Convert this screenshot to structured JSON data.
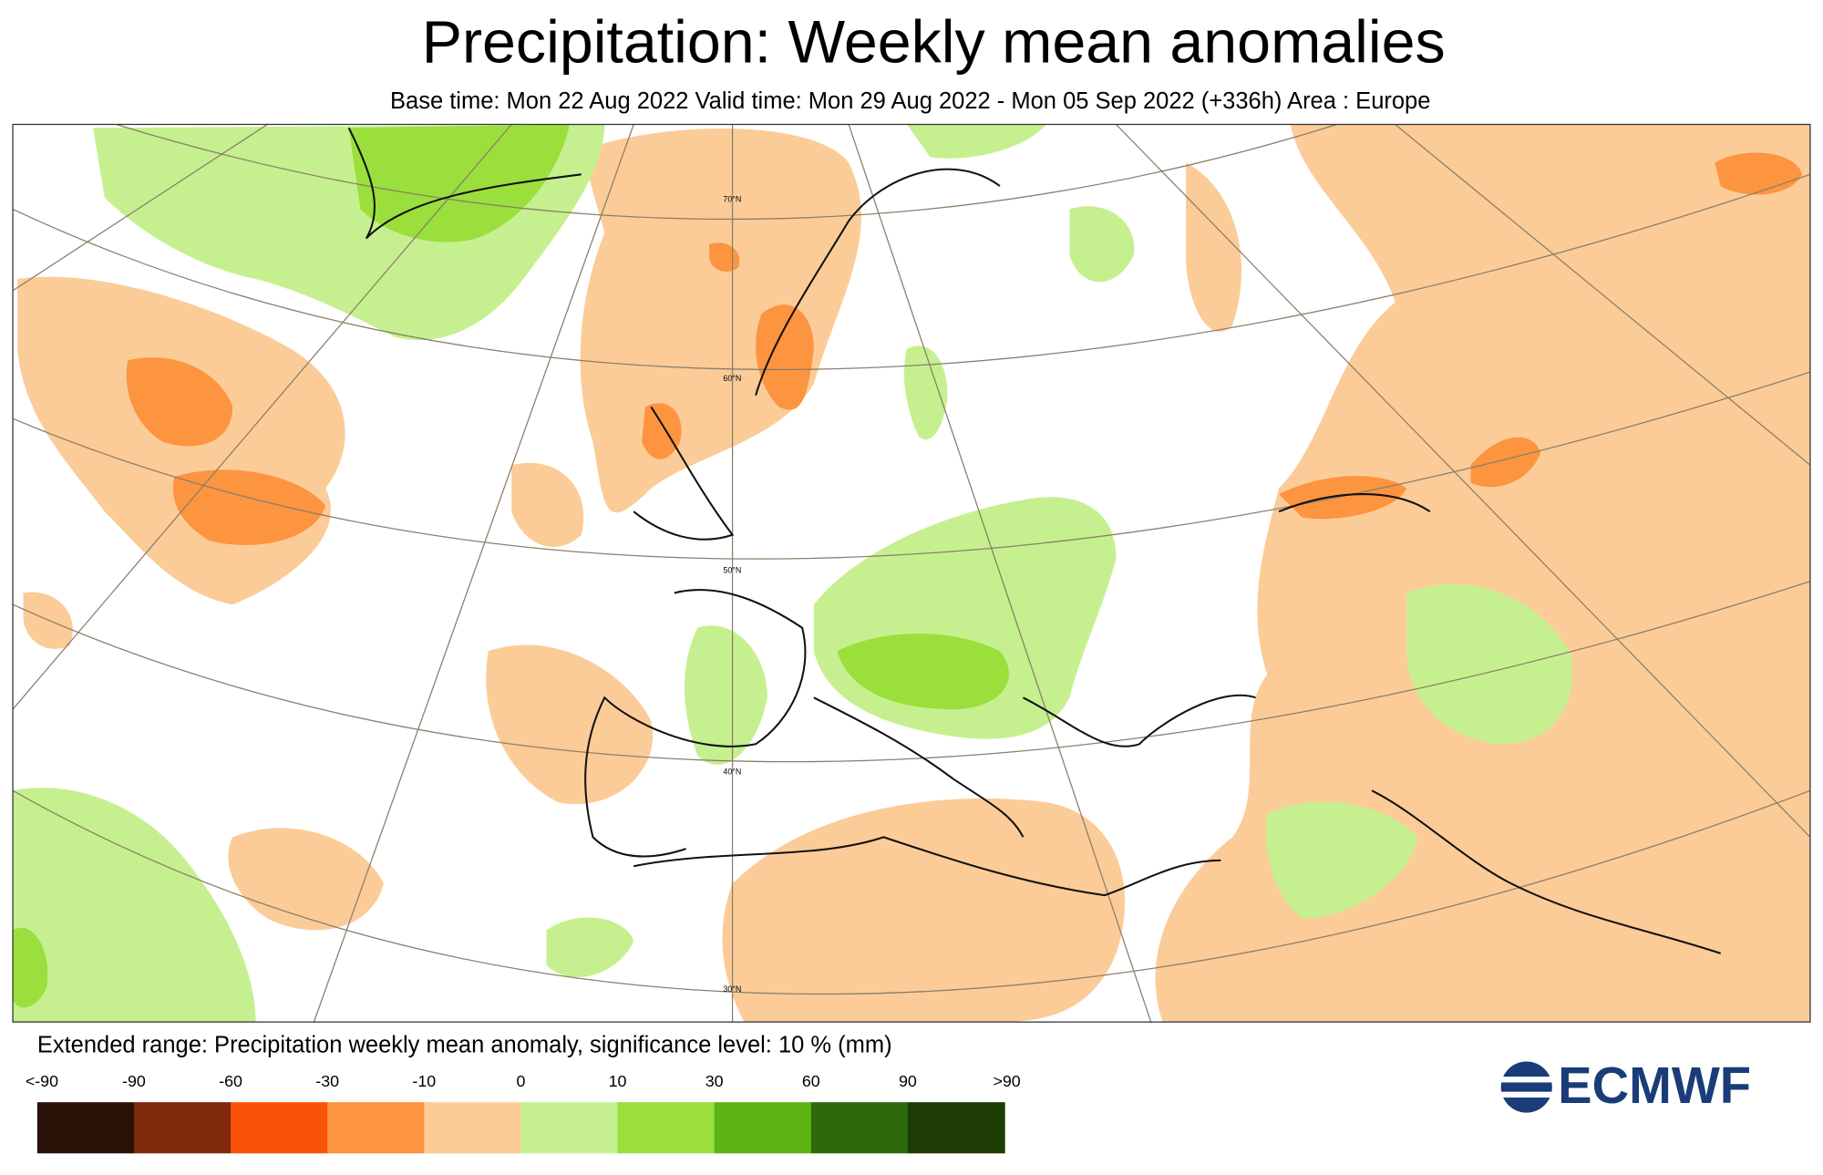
{
  "header": {
    "title": "Precipitation: Weekly mean anomalies",
    "subtitle": "Base time: Mon 22 Aug 2022 Valid time: Mon 29 Aug 2022 - Mon 05 Sep 2022 (+336h) Area : Europe"
  },
  "map": {
    "lat_labels": [
      "70°N",
      "60°N",
      "50°N",
      "40°N",
      "30°N"
    ]
  },
  "legend": {
    "title": "Extended range: Precipitation weekly mean anomaly, significance level: 10 % (mm)",
    "labels": [
      "<-90",
      "-90",
      "-60",
      "-30",
      "-10",
      "0",
      "10",
      "30",
      "60",
      "90",
      ">90"
    ],
    "colors": [
      "#2a1208",
      "#7f2a08",
      "#fb520a",
      "#fd9440",
      "#fbcc98",
      "#c6f08f",
      "#9adf3c",
      "#5db514",
      "#2e6a0c",
      "#1e3d04"
    ]
  },
  "logo": {
    "text": "ECMWF"
  }
}
